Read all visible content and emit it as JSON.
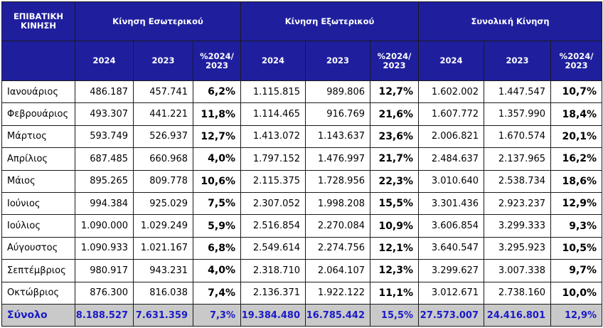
{
  "header": {
    "corner_label": "ΕΠΙΒΑΤΙΚΗ ΚΙΝΗΣΗ",
    "groups": [
      "Κίνηση Εσωτερικού",
      "Κίνηση Εξωτερικού",
      "Συνολική Κίνηση"
    ],
    "subcols": [
      "2024",
      "2023",
      "%2024/ 2023"
    ]
  },
  "rows": [
    {
      "month": "Ιανουάριος",
      "vals": [
        "486.187",
        "457.741",
        "6,2%",
        "1.115.815",
        "989.806",
        "12,7%",
        "1.602.002",
        "1.447.547",
        "10,7%"
      ]
    },
    {
      "month": "Φεβρουάριος",
      "vals": [
        "493.307",
        "441.221",
        "11,8%",
        "1.114.465",
        "916.769",
        "21,6%",
        "1.607.772",
        "1.357.990",
        "18,4%"
      ]
    },
    {
      "month": "Μάρτιος",
      "vals": [
        "593.749",
        "526.937",
        "12,7%",
        "1.413.072",
        "1.143.637",
        "23,6%",
        "2.006.821",
        "1.670.574",
        "20,1%"
      ]
    },
    {
      "month": "Απρίλιος",
      "vals": [
        "687.485",
        "660.968",
        "4,0%",
        "1.797.152",
        "1.476.997",
        "21,7%",
        "2.484.637",
        "2.137.965",
        "16,2%"
      ]
    },
    {
      "month": "Μάιος",
      "vals": [
        "895.265",
        "809.778",
        "10,6%",
        "2.115.375",
        "1.728.956",
        "22,3%",
        "3.010.640",
        "2.538.734",
        "18,6%"
      ]
    },
    {
      "month": "Ιούνιος",
      "vals": [
        "994.384",
        "925.029",
        "7,5%",
        "2.307.052",
        "1.998.208",
        "15,5%",
        "3.301.436",
        "2.923.237",
        "12,9%"
      ]
    },
    {
      "month": "Ιούλιος",
      "vals": [
        "1.090.000",
        "1.029.249",
        "5,9%",
        "2.516.854",
        "2.270.084",
        "10,9%",
        "3.606.854",
        "3.299.333",
        "9,3%"
      ]
    },
    {
      "month": "Αύγουστος",
      "vals": [
        "1.090.933",
        "1.021.167",
        "6,8%",
        "2.549.614",
        "2.274.756",
        "12,1%",
        "3.640.547",
        "3.295.923",
        "10,5%"
      ]
    },
    {
      "month": "Σεπτέμβριος",
      "vals": [
        "980.917",
        "943.231",
        "4,0%",
        "2.318.710",
        "2.064.107",
        "12,3%",
        "3.299.627",
        "3.007.338",
        "9,7%"
      ]
    },
    {
      "month": "Οκτώβριος",
      "vals": [
        "876.300",
        "816.038",
        "7,4%",
        "2.136.371",
        "1.922.122",
        "11,1%",
        "3.012.671",
        "2.738.160",
        "10,0%"
      ]
    }
  ],
  "total": {
    "month": "Σύνολο",
    "vals": [
      "8.188.527",
      "7.631.359",
      "7,3%",
      "19.384.480",
      "16.785.442",
      "15,5%",
      "27.573.007",
      "24.416.801",
      "12,9%"
    ]
  },
  "colors": {
    "header_bg": "#1f1f9e",
    "header_text": "#ffffff",
    "total_bg": "#c9c9c9",
    "total_text": "#1a1ac8"
  }
}
